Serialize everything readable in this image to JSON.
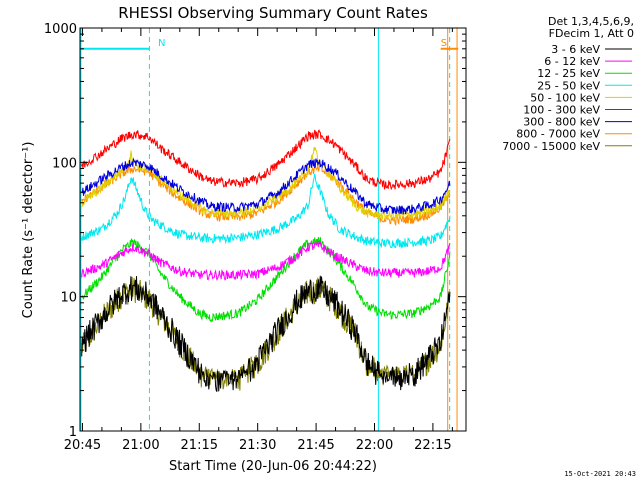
{
  "chart_data": {
    "type": "line",
    "title": "RHESSI Observing Summary Count Rates",
    "xlabel": "Start Time (20-Jun-06 20:44:22)",
    "ylabel": "Count Rate (s⁻¹ detector⁻¹)",
    "yscale": "log",
    "ylim": [
      1,
      1000
    ],
    "xlim_minutes": [
      44.37,
      143.5
    ],
    "x_tick_labels": [
      "20:45",
      "21:00",
      "21:15",
      "21:30",
      "21:45",
      "22:00",
      "22:15"
    ],
    "x_tick_minutes": [
      45,
      60,
      75,
      90,
      105,
      120,
      135
    ],
    "y_tick_labels": [
      "1",
      "10",
      "100",
      "1000"
    ],
    "y_tick_values": [
      1,
      10,
      100,
      1000
    ],
    "legend_header": [
      "Det 1,3,4,5,6,9,",
      "FDecim 1, Att 0"
    ],
    "footer_date": "15-Oct-2021 20:43",
    "flags": [
      {
        "label": "N",
        "color": "#00e8f0",
        "level": 700,
        "start_min": 44.37,
        "end_min": 62.2
      },
      {
        "label": "S",
        "color": "#ff8c00",
        "level": 700,
        "start_min": 137.0,
        "end_min": 141.5
      }
    ],
    "vertical_markers": [
      {
        "minute": 44.6,
        "color": "#00e8f0",
        "style": "solid"
      },
      {
        "minute": 62.2,
        "color": "#00e8f0",
        "style": "dashed"
      },
      {
        "minute": 121.0,
        "color": "#00e8f0",
        "style": "solid"
      },
      {
        "minute": 139.3,
        "color": "#00e8f0",
        "style": "dashed"
      },
      {
        "minute": 138.8,
        "color": "#ff8c00",
        "style": "solid"
      },
      {
        "minute": 141.2,
        "color": "#ff8c00",
        "style": "solid"
      }
    ],
    "series": [
      {
        "name": "3 - 6 keV",
        "color": "#000000",
        "data_start_min": 44.8,
        "x": [
          45,
          50,
          55,
          58,
          62,
          65,
          70,
          75,
          78,
          85,
          90,
          95,
          100,
          103,
          106,
          110,
          115,
          118,
          122,
          125,
          130,
          134,
          137,
          139.5
        ],
        "values": [
          4.5,
          7,
          10.5,
          11.8,
          10,
          7.5,
          4.5,
          2.8,
          2.2,
          2.3,
          3.3,
          5.5,
          9,
          11,
          11.5,
          9,
          5.5,
          3.2,
          2.5,
          2.4,
          2.6,
          3.5,
          4.5,
          11
        ]
      },
      {
        "name": "6 - 12 keV",
        "color": "#ff00ff",
        "data_start_min": 44.8,
        "x": [
          45,
          50,
          55,
          58,
          62,
          65,
          70,
          75,
          78,
          85,
          90,
          95,
          100,
          103,
          106,
          110,
          115,
          118,
          122,
          125,
          130,
          134,
          137,
          139.5
        ],
        "values": [
          15,
          17,
          21,
          23.5,
          21,
          18,
          15.5,
          14.5,
          14.5,
          14.5,
          14.8,
          16.5,
          20,
          23.5,
          24,
          20,
          17,
          15.5,
          15,
          15,
          15,
          15.5,
          16.5,
          24
        ]
      },
      {
        "name": "12 - 25 keV",
        "color": "#00e000",
        "data_start_min": 44.8,
        "x": [
          45,
          50,
          55,
          58,
          62,
          65,
          70,
          75,
          78,
          85,
          90,
          95,
          100,
          103,
          106,
          110,
          115,
          118,
          122,
          125,
          130,
          134,
          137,
          139.5
        ],
        "values": [
          10,
          14,
          22,
          25.5,
          21,
          15,
          10,
          7.5,
          7,
          7.5,
          9.5,
          14,
          21,
          25,
          26,
          19,
          12,
          8.5,
          7.5,
          7.3,
          7.5,
          8.5,
          10,
          21
        ]
      },
      {
        "name": "25 - 50 keV",
        "color": "#00e8f0",
        "data_start_min": 44.8,
        "x": [
          45,
          50,
          54,
          56,
          57.5,
          59,
          61,
          63,
          66,
          70,
          75,
          78,
          85,
          90,
          95,
          100,
          103,
          104.5,
          106,
          108,
          111,
          115,
          118,
          122,
          125,
          130,
          134,
          137,
          139.5
        ],
        "values": [
          28,
          32,
          42,
          55,
          78,
          62,
          44,
          37,
          33,
          29,
          27.5,
          27,
          27.5,
          29,
          32,
          38,
          48,
          78,
          62,
          42,
          32,
          28,
          26,
          25,
          25,
          25.5,
          26,
          28,
          40
        ]
      },
      {
        "name": "50 - 100 keV",
        "color": "#e0d000",
        "data_start_min": 44.8,
        "x": [
          45,
          50,
          54,
          56,
          57.5,
          59,
          62,
          65,
          70,
          75,
          78,
          85,
          90,
          95,
          100,
          103,
          104.5,
          106,
          108,
          111,
          115,
          118,
          122,
          125,
          130,
          134,
          137,
          139.5
        ],
        "values": [
          50,
          65,
          82,
          92,
          115,
          95,
          88,
          75,
          58,
          46,
          42,
          42,
          45,
          55,
          70,
          88,
          125,
          98,
          85,
          65,
          48,
          42,
          40,
          40,
          41,
          43,
          47,
          65
        ]
      },
      {
        "name": "100 - 300 keV",
        "color": "#ff0000",
        "data_start_min": 44.8,
        "x": [
          45,
          50,
          55,
          58,
          62,
          65,
          70,
          75,
          78,
          85,
          90,
          95,
          100,
          103,
          106,
          110,
          115,
          118,
          122,
          125,
          130,
          134,
          137,
          139.5
        ],
        "values": [
          95,
          118,
          150,
          163,
          155,
          128,
          100,
          80,
          72,
          70,
          75,
          95,
          130,
          158,
          162,
          135,
          95,
          75,
          68,
          68,
          70,
          75,
          85,
          145
        ]
      },
      {
        "name": "300 - 800 keV",
        "color": "#0000dd",
        "data_start_min": 44.8,
        "x": [
          45,
          50,
          55,
          58,
          62,
          65,
          70,
          75,
          78,
          85,
          90,
          95,
          100,
          103,
          106,
          110,
          115,
          118,
          122,
          125,
          130,
          134,
          137,
          139.5
        ],
        "values": [
          60,
          75,
          92,
          100,
          94,
          80,
          63,
          52,
          47,
          46,
          49,
          59,
          80,
          96,
          100,
          84,
          60,
          49,
          45,
          44,
          45,
          48,
          53,
          70
        ]
      },
      {
        "name": "800 - 7000 keV",
        "color": "#ff8c00",
        "data_start_min": 44.8,
        "x": [
          45,
          50,
          55,
          58,
          62,
          65,
          70,
          75,
          78,
          85,
          90,
          95,
          100,
          103,
          106,
          110,
          115,
          118,
          122,
          125,
          130,
          134,
          137,
          139.5
        ],
        "values": [
          52,
          65,
          82,
          90,
          85,
          70,
          54,
          44,
          40,
          39,
          42,
          51,
          69,
          85,
          90,
          74,
          52,
          42,
          38,
          37,
          38,
          41,
          46,
          60
        ]
      },
      {
        "name": "7000 - 15000 keV",
        "color": "#808000",
        "data_start_min": 44.8,
        "x": [
          45,
          50,
          55,
          58,
          62,
          65,
          70,
          75,
          78,
          85,
          90,
          95,
          100,
          103,
          106,
          110,
          115,
          118,
          122,
          125,
          130,
          134,
          137,
          139.5
        ],
        "values": [
          4.2,
          6.8,
          10.2,
          11.5,
          9.6,
          7.3,
          4.4,
          2.7,
          2.3,
          2.3,
          3.2,
          5.3,
          8.8,
          10.8,
          11.3,
          8.8,
          5.3,
          3.1,
          2.5,
          2.4,
          2.6,
          3.4,
          4.4,
          10.5
        ]
      }
    ]
  }
}
